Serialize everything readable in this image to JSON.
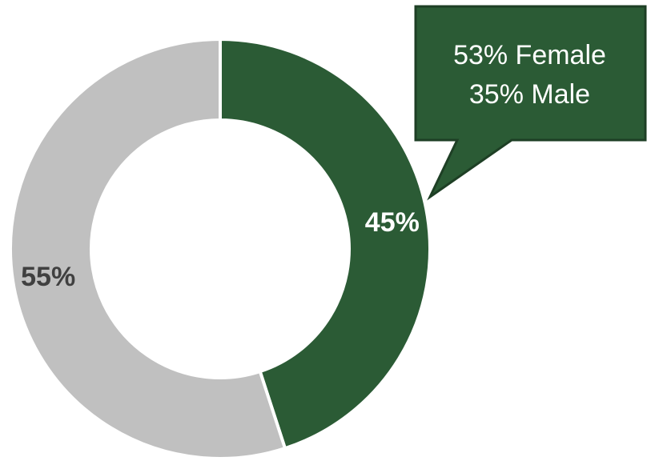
{
  "chart_data": {
    "type": "pie",
    "subtype": "donut",
    "title": "",
    "categories": [
      "",
      ""
    ],
    "values": [
      45,
      55
    ],
    "data_labels": [
      "45%",
      "55%"
    ],
    "colors": [
      "#2b5b35",
      "#c0c0c0"
    ],
    "label_colors": [
      "#ffffff",
      "#404040"
    ],
    "callout": {
      "lines": [
        "53% Female",
        "35% Male"
      ],
      "attached_to": 0,
      "fill": "#2b5b35",
      "border": "#1e3f25",
      "text_color": "#ffffff"
    }
  }
}
